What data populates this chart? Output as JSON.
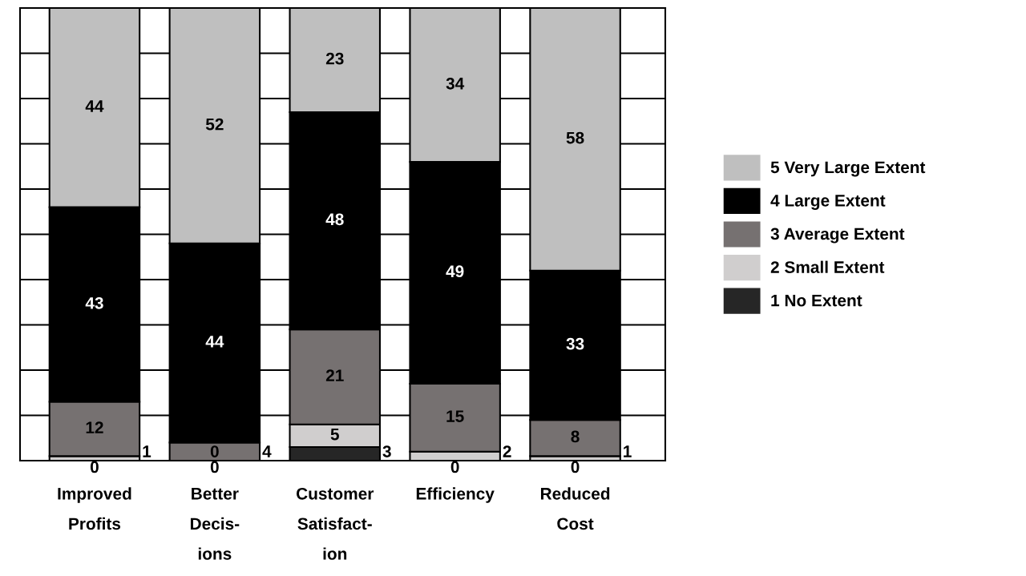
{
  "chart_data": {
    "type": "bar",
    "stacked": true,
    "grid": "y",
    "legend": "right",
    "tick_labels": "x",
    "ylim": [
      0,
      100
    ],
    "yticks": [
      {
        "value": 0,
        "label": null
      },
      {
        "value": 10,
        "label": null
      },
      {
        "value": 20,
        "label": null
      },
      {
        "value": 30,
        "label": null
      },
      {
        "value": 40,
        "label": null
      },
      {
        "value": 50,
        "label": null
      },
      {
        "value": 60,
        "label": null
      },
      {
        "value": 70,
        "label": null
      },
      {
        "value": 80,
        "label": null
      },
      {
        "value": 90,
        "label": null
      },
      {
        "value": 100,
        "label": null
      }
    ],
    "categories": [
      "Improved\nProfits",
      "Better\nDecis-\nions",
      "Customer\nSatisfact-\nion",
      "Efficiency",
      "Reduced\nCost"
    ],
    "series": [
      {
        "name": "1 No Extent",
        "color": "#262626",
        "values": [
          0,
          0,
          3,
          0,
          0
        ],
        "value_labels": [
          null,
          null,
          "3",
          null,
          null
        ]
      },
      {
        "name": "2 Small Extent",
        "color": "#d0cece",
        "values": [
          1,
          0,
          5,
          2,
          1
        ],
        "value_labels": [
          "1",
          null,
          "5",
          "2",
          "1"
        ]
      },
      {
        "name": "3 Average Extent",
        "color": "#767171",
        "values": [
          12,
          4,
          21,
          15,
          8
        ],
        "value_labels": [
          "12",
          "4",
          "21",
          "15",
          "8"
        ]
      },
      {
        "name": "4 Large Extent",
        "color": "#000000",
        "values": [
          43,
          44,
          48,
          49,
          33
        ],
        "value_labels": [
          "43",
          "44",
          "48",
          "49",
          "33"
        ]
      },
      {
        "name": "5 Very Large Extent",
        "color": "#bfbfbf",
        "values": [
          44,
          52,
          23,
          34,
          58
        ],
        "value_labels": [
          "44",
          "52",
          "23",
          "34",
          "58"
        ]
      }
    ],
    "annotations": [
      {
        "text": "0",
        "x": "Improved\nProfits",
        "y": 0
      },
      {
        "text": "0",
        "x": "Better\nDecis-\nions",
        "y": 0
      },
      {
        "text": "0",
        "x": "Better\nDecis-\nions",
        "y": 0
      },
      {
        "text": "0",
        "x": "Efficiency",
        "y": 0
      },
      {
        "text": "0",
        "x": "Reduced\nCost",
        "y": 0
      }
    ]
  }
}
